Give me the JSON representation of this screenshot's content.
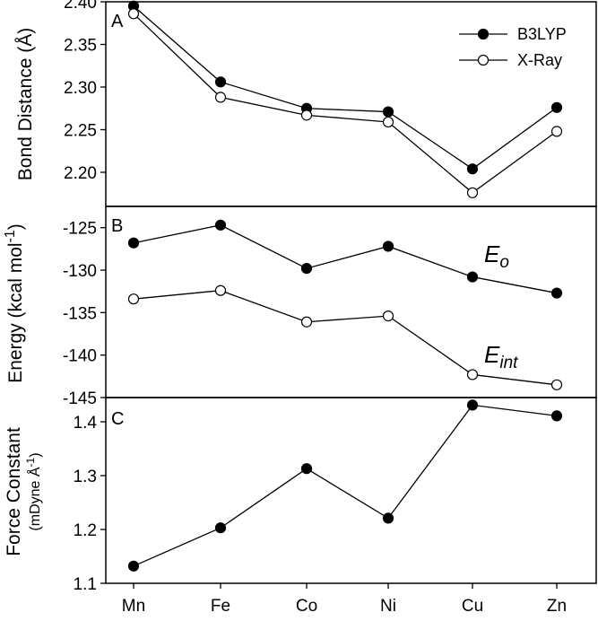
{
  "chart_data": {
    "type": "line",
    "categories": [
      "Mn",
      "Fe",
      "Co",
      "Ni",
      "Cu",
      "Zn"
    ],
    "panels": [
      {
        "letter": "A",
        "ylabel": "Bond Distance (Å)",
        "ylim": [
          2.16,
          2.4
        ],
        "yticks": [
          2.2,
          2.25,
          2.3,
          2.35,
          2.4
        ],
        "tick_decimals": 2,
        "legend": {
          "placement": "top-right"
        },
        "series": [
          {
            "name": "B3LYP",
            "marker": "filled",
            "values": [
              2.395,
              2.306,
              2.275,
              2.271,
              2.204,
              2.276
            ]
          },
          {
            "name": "X-Ray",
            "marker": "open",
            "values": [
              2.386,
              2.288,
              2.267,
              2.259,
              2.176,
              2.248
            ]
          }
        ]
      },
      {
        "letter": "B",
        "ylabel_main": "Energy (kcal mol",
        "ylabel_sup": "-1",
        "ylabel_close": ")",
        "ylim": [
          -145,
          -122.5
        ],
        "yticks": [
          -125,
          -130,
          -135,
          -140,
          -145
        ],
        "tick_decimals": 0,
        "series": [
          {
            "label": "E",
            "label_sub": "o",
            "marker": "filled",
            "values": [
              -126.8,
              -124.7,
              -129.8,
              -127.2,
              -130.8,
              -132.7
            ]
          },
          {
            "label": "E",
            "label_sub": "int",
            "marker": "open",
            "values": [
              -133.4,
              -132.4,
              -136.1,
              -135.4,
              -142.3,
              -143.5
            ]
          }
        ]
      },
      {
        "letter": "C",
        "ylabel_line1": "Force Constant",
        "ylabel_line2_main": "(mDyne Å",
        "ylabel_line2_sup": "-1",
        "ylabel_line2_close": ")",
        "ylim": [
          1.1,
          1.445
        ],
        "yticks": [
          1.1,
          1.2,
          1.3,
          1.4
        ],
        "tick_decimals": 1,
        "series": [
          {
            "marker": "filled",
            "values": [
              1.132,
              1.203,
              1.313,
              1.221,
              1.431,
              1.411
            ]
          }
        ]
      }
    ]
  }
}
